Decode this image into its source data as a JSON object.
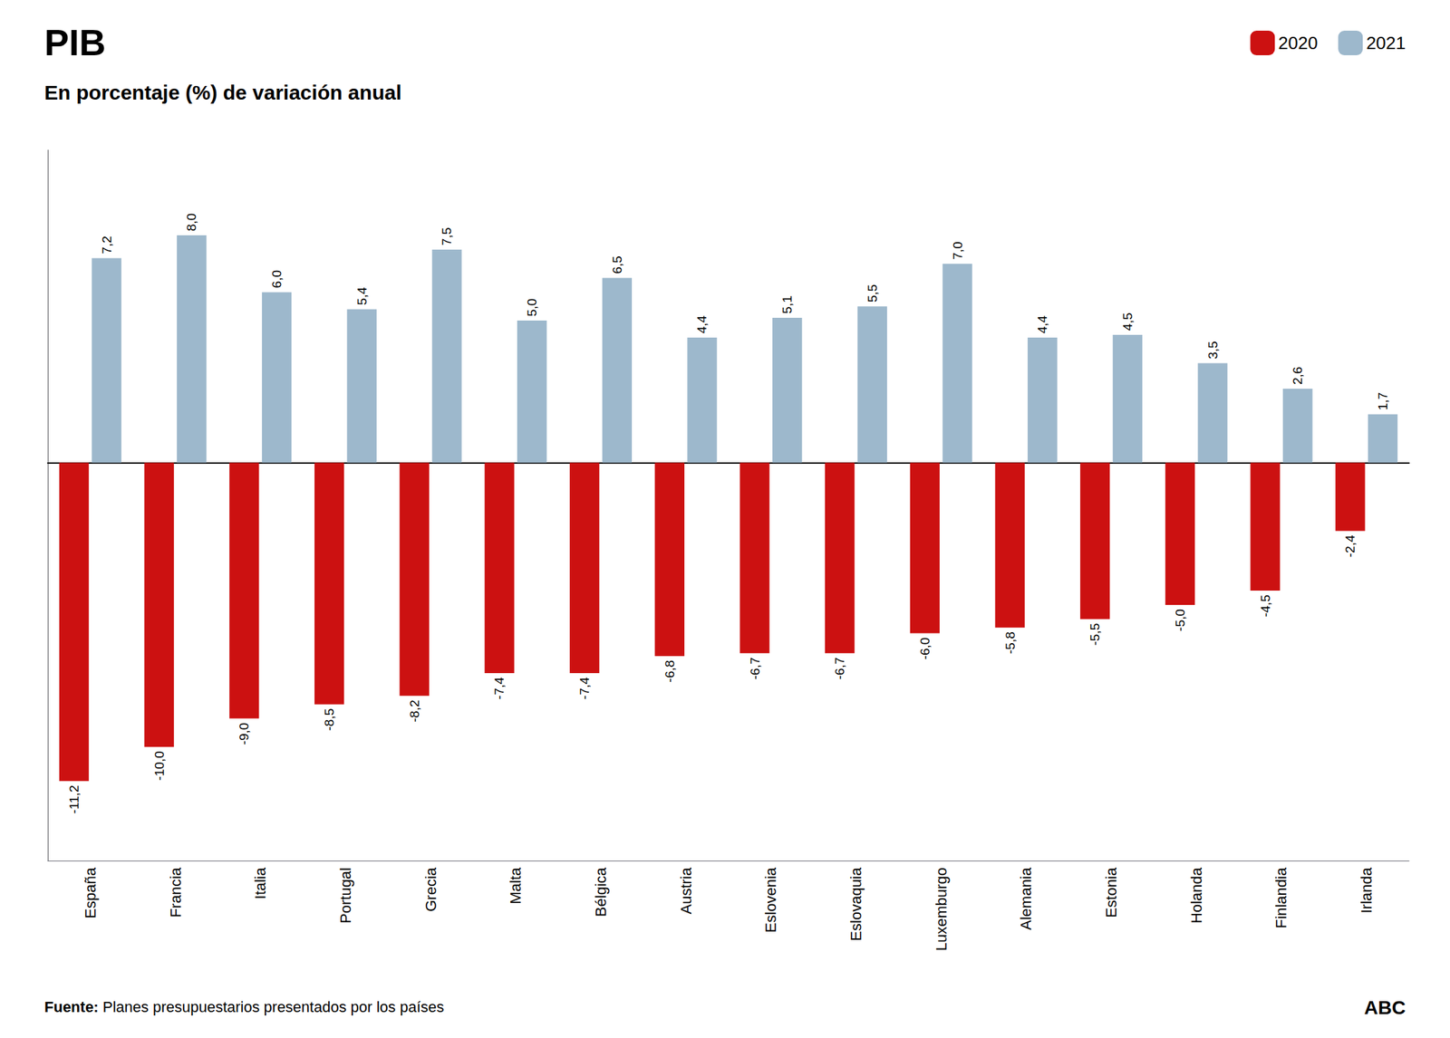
{
  "chart_data": {
    "type": "bar",
    "title": "PIB",
    "subtitle": "En porcentaje (%) de variación anual",
    "categories": [
      "España",
      "Francia",
      "Italia",
      "Portugal",
      "Grecia",
      "Malta",
      "Bélgica",
      "Austria",
      "Eslovenia",
      "Eslovaquia",
      "Luxemburgo",
      "Alemania",
      "Estonia",
      "Holanda",
      "Finlandia",
      "Irlanda"
    ],
    "series": [
      {
        "name": "2020",
        "color": "#CC1111",
        "values": [
          -11.2,
          -10.0,
          -9.0,
          -8.5,
          -8.2,
          -7.4,
          -7.4,
          -6.8,
          -6.7,
          -6.7,
          -6.0,
          -5.8,
          -5.5,
          -5.0,
          -4.5,
          -2.4
        ],
        "value_labels": [
          "-11,2",
          "-10,0",
          "-9,0",
          "-8,5",
          "-8,2",
          "-7,4",
          "-7,4",
          "-6,8",
          "-6,7",
          "-6,7",
          "-6,0",
          "-5,8",
          "-5,5",
          "-5,0",
          "-4,5",
          "-2,4"
        ]
      },
      {
        "name": "2021",
        "color": "#9DB8CC",
        "values": [
          7.2,
          8.0,
          6.0,
          5.4,
          7.5,
          5.0,
          6.5,
          4.4,
          5.1,
          5.5,
          7.0,
          4.4,
          4.5,
          3.5,
          2.6,
          1.7
        ],
        "value_labels": [
          "7,2",
          "8,0",
          "6,0",
          "5,4",
          "7,5",
          "5,0",
          "6,5",
          "4,4",
          "5,1",
          "5,5",
          "7,0",
          "4,4",
          "4,5",
          "3,5",
          "2,6",
          "1,7"
        ]
      }
    ],
    "ylim": [
      -14.0,
      11.0
    ],
    "grid": false,
    "legend": "upper right",
    "data_labels": true,
    "tick_labels": "x",
    "annotations": [
      "Fuente: Planes presupuestarios presentados por los países",
      "ABC"
    ]
  }
}
